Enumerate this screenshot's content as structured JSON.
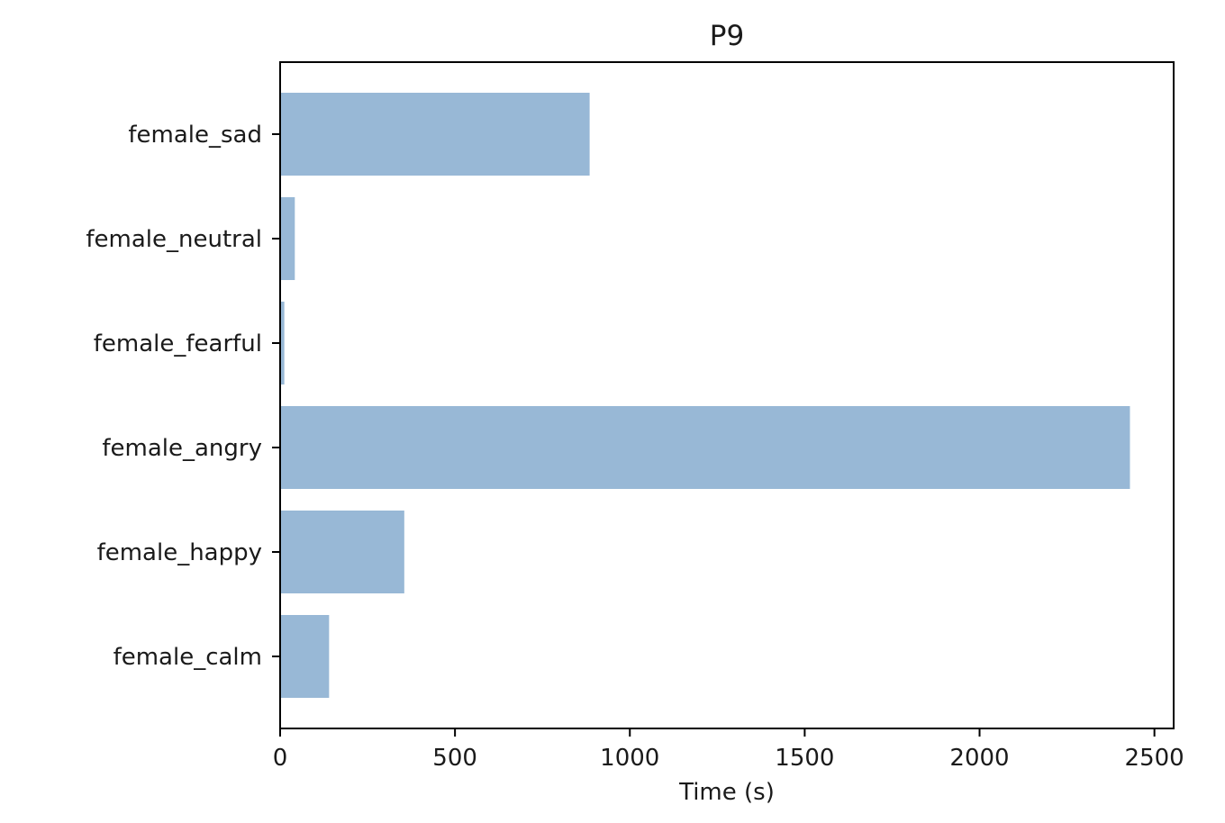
{
  "chart_data": {
    "type": "bar",
    "orientation": "horizontal",
    "title": "P9",
    "xlabel": "Time (s)",
    "ylabel": "",
    "categories": [
      "female_calm",
      "female_happy",
      "female_angry",
      "female_fearful",
      "female_neutral",
      "female_sad"
    ],
    "values": [
      140,
      355,
      2430,
      12,
      42,
      885
    ],
    "xlim": [
      0,
      2555
    ],
    "xticks": [
      "0",
      "500",
      "1000",
      "1500",
      "2000",
      "2500"
    ],
    "bar_color": "#98b8d6",
    "grid": false,
    "legend": "none"
  }
}
